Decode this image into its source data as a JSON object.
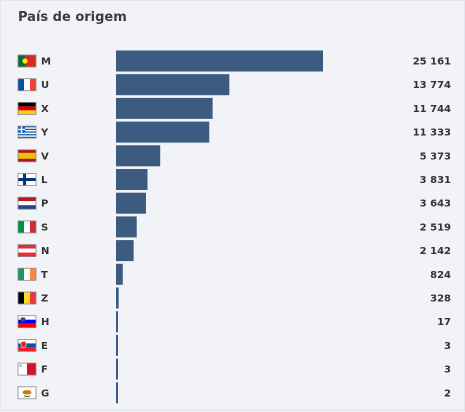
{
  "panel": {
    "title": "País de origem"
  },
  "chart_data": {
    "type": "bar",
    "orientation": "horizontal",
    "title": "País de origem",
    "categories": [
      "M",
      "U",
      "X",
      "Y",
      "V",
      "L",
      "P",
      "S",
      "N",
      "T",
      "Z",
      "H",
      "E",
      "F",
      "G"
    ],
    "values": [
      25161,
      13774,
      11744,
      11333,
      5373,
      3831,
      3643,
      2519,
      2142,
      824,
      328,
      17,
      3,
      3,
      2
    ],
    "value_labels": [
      "25 161",
      "13 774",
      "11 744",
      "11 333",
      "5 373",
      "3 831",
      "3 643",
      "2 519",
      "2 142",
      "824",
      "328",
      "17",
      "3",
      "3",
      "2"
    ],
    "flags": [
      "portugal-flag-icon",
      "france-flag-icon",
      "germany-flag-icon",
      "greece-flag-icon",
      "spain-flag-icon",
      "finland-flag-icon",
      "netherlands-flag-icon",
      "italy-flag-icon",
      "austria-flag-icon",
      "ireland-flag-icon",
      "belgium-flag-icon",
      "slovenia-flag-icon",
      "slovakia-flag-icon",
      "malta-flag-icon",
      "cyprus-flag-icon"
    ],
    "bar_color": "#3d5a80",
    "grid": false,
    "xlim": [
      0,
      25161
    ]
  }
}
